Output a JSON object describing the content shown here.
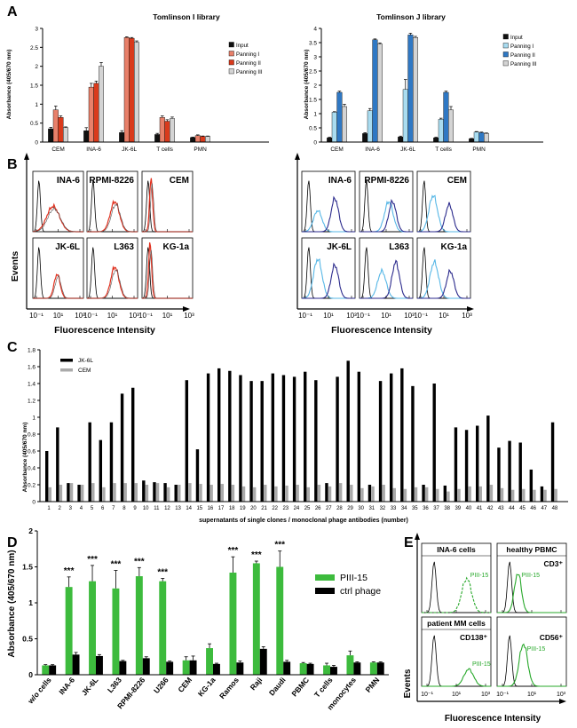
{
  "panels": {
    "A": {
      "letter": "A",
      "left": {
        "title": "Tomlinson I library",
        "ylabel": "Absorbance (405/670 nm)",
        "ticks": [
          "0",
          "0.5",
          "1",
          "1.5",
          "2",
          "2.5",
          "3"
        ],
        "legend": [
          "Input",
          "Panning I",
          "Panning II",
          "Panning III"
        ],
        "colors": [
          "#111111",
          "#e8806a",
          "#d93a1c",
          "#d4d4d4"
        ]
      },
      "right": {
        "title": "Tomlinson J library",
        "ylabel": "Absorbance (405/670 nm)",
        "ticks": [
          "0",
          "0.5",
          "1",
          "1.5",
          "2",
          "2.5",
          "3",
          "3.5",
          "4"
        ],
        "legend": [
          "Input",
          "Panning I",
          "Panning II",
          "Panning III"
        ],
        "colors": [
          "#111111",
          "#a9dcf0",
          "#2f78c4",
          "#d4d4d4"
        ]
      }
    },
    "B": {
      "letter": "B",
      "xlabel": "Fluorescence Intensity",
      "ylabel": "Events",
      "ticks": [
        "10⁻¹",
        "10¹",
        "10³"
      ],
      "left_labels": [
        "INA-6",
        "RPMI-8226",
        "CEM",
        "JK-6L",
        "L363",
        "KG-1a"
      ],
      "right_labels": [
        "INA-6",
        "RPMI-8226",
        "CEM",
        "JK-6L",
        "L363",
        "KG-1a"
      ],
      "left_color": "#e0301e",
      "right_colors": [
        "#57b7e6",
        "#2b2a8c"
      ]
    },
    "C": {
      "letter": "C",
      "ylabel": "Absorbance (405/670 nm)",
      "xlabel": "supernatants of single clones / monoclonal phage antibodies (number)",
      "ticks": [
        "0",
        "0.2",
        "0.4",
        "0.6",
        "0.8",
        "1",
        "1.2",
        "1.4",
        "1.6",
        "1.8"
      ],
      "legend": [
        "JK-6L",
        "CEM"
      ],
      "colors": [
        "#000000",
        "#aaaaaa"
      ]
    },
    "D": {
      "letter": "D",
      "ylabel": "Absorbance (405/670 nm)",
      "ticks": [
        "0",
        "0.5",
        "1",
        "1.5",
        "2"
      ],
      "legend": [
        "PIII-15",
        "ctrl phage"
      ],
      "colors": [
        "#3dbb3d",
        "#000000"
      ],
      "significance": "***"
    },
    "E": {
      "letter": "E",
      "titles": [
        "INA-6 cells",
        "healthy PBMC",
        "patient MM cells",
        ""
      ],
      "markers": [
        "",
        "CD3⁺",
        "CD138⁺",
        "CD56⁺"
      ],
      "curve_label": "PIII-15",
      "xlabel": "Fluorescence Intensity",
      "ylabel": "Events",
      "ticks": [
        "10⁻¹",
        "10¹",
        "10³"
      ],
      "color": "#27a82a"
    }
  },
  "chart_data": [
    {
      "id": "A-left",
      "type": "bar",
      "title": "Tomlinson I library",
      "ylabel": "Absorbance (405/670 nm)",
      "ylim": [
        0,
        3
      ],
      "categories": [
        "CEM",
        "INA-6",
        "JK-6L",
        "T cells",
        "PMN"
      ],
      "series": [
        {
          "name": "Input",
          "values": [
            0.35,
            0.3,
            0.25,
            0.2,
            0.12
          ]
        },
        {
          "name": "Panning I",
          "values": [
            0.85,
            1.45,
            2.76,
            0.65,
            0.17
          ]
        },
        {
          "name": "Panning II",
          "values": [
            0.65,
            1.55,
            2.74,
            0.55,
            0.15
          ]
        },
        {
          "name": "Panning III",
          "values": [
            0.38,
            2.0,
            2.63,
            0.62,
            0.15
          ]
        }
      ]
    },
    {
      "id": "A-right",
      "type": "bar",
      "title": "Tomlinson J library",
      "ylabel": "Absorbance (405/670 nm)",
      "ylim": [
        0,
        4
      ],
      "categories": [
        "CEM",
        "INA-6",
        "JK-6L",
        "T cells",
        "PMN"
      ],
      "series": [
        {
          "name": "Input",
          "values": [
            0.15,
            0.3,
            0.18,
            0.15,
            0.12
          ]
        },
        {
          "name": "Panning I",
          "values": [
            1.05,
            1.1,
            1.85,
            0.8,
            0.35
          ]
        },
        {
          "name": "Panning II",
          "values": [
            1.75,
            3.6,
            3.77,
            1.75,
            0.33
          ]
        },
        {
          "name": "Panning III",
          "values": [
            1.25,
            3.45,
            3.68,
            1.13,
            0.3
          ]
        }
      ]
    },
    {
      "id": "C",
      "type": "bar",
      "ylabel": "Absorbance (405/670 nm)",
      "xlabel": "supernatants of single clones / monoclonal phage antibodies (number)",
      "ylim": [
        0,
        1.8
      ],
      "categories": [
        "1",
        "2",
        "3",
        "4",
        "5",
        "6",
        "7",
        "8",
        "9",
        "10",
        "11",
        "12",
        "13",
        "14",
        "15",
        "16",
        "17",
        "18",
        "19",
        "20",
        "21",
        "22",
        "23",
        "24",
        "25",
        "26",
        "27",
        "28",
        "29",
        "30",
        "31",
        "32",
        "33",
        "34",
        "35",
        "36",
        "37",
        "38",
        "39",
        "40",
        "41",
        "42",
        "43",
        "44",
        "45",
        "46",
        "47",
        "48"
      ],
      "series": [
        {
          "name": "JK-6L",
          "values": [
            0.6,
            0.88,
            0.22,
            0.2,
            0.94,
            0.73,
            0.94,
            1.28,
            1.35,
            0.25,
            0.23,
            0.22,
            0.2,
            1.44,
            0.62,
            1.52,
            1.58,
            1.55,
            1.5,
            1.43,
            1.43,
            1.52,
            1.5,
            1.48,
            1.54,
            1.44,
            0.22,
            1.48,
            1.67,
            1.54,
            0.2,
            1.43,
            1.52,
            1.58,
            1.37,
            0.2,
            1.4,
            0.19,
            0.88,
            0.85,
            0.9,
            1.02,
            0.64,
            0.72,
            0.7,
            0.38,
            0.18,
            0.94
          ]
        },
        {
          "name": "CEM",
          "values": [
            0.17,
            0.2,
            0.22,
            0.2,
            0.22,
            0.17,
            0.22,
            0.22,
            0.22,
            0.2,
            0.22,
            0.17,
            0.2,
            0.22,
            0.21,
            0.2,
            0.21,
            0.2,
            0.18,
            0.17,
            0.2,
            0.18,
            0.19,
            0.2,
            0.17,
            0.2,
            0.18,
            0.22,
            0.2,
            0.16,
            0.18,
            0.2,
            0.16,
            0.15,
            0.17,
            0.17,
            0.15,
            0.12,
            0.15,
            0.18,
            0.18,
            0.2,
            0.16,
            0.14,
            0.15,
            0.14,
            0.14,
            0.15
          ]
        }
      ]
    },
    {
      "id": "D",
      "type": "bar",
      "ylabel": "Absorbance (405/670 nm)",
      "ylim": [
        0,
        2
      ],
      "categories": [
        "w/o cells",
        "INA-6",
        "JK-6L",
        "L363",
        "RPMI-8226",
        "U266",
        "CEM",
        "KG-1a",
        "Ramos",
        "Raji",
        "Daudi",
        "PBMC",
        "T cells",
        "monocytes",
        "PMN"
      ],
      "series": [
        {
          "name": "PIII-15",
          "values": [
            0.13,
            1.22,
            1.3,
            1.2,
            1.37,
            1.3,
            0.2,
            0.37,
            1.42,
            1.55,
            1.5,
            0.16,
            0.13,
            0.27,
            0.17
          ]
        },
        {
          "name": "ctrl phage",
          "values": [
            0.13,
            0.28,
            0.26,
            0.19,
            0.23,
            0.18,
            0.2,
            0.15,
            0.17,
            0.36,
            0.18,
            0.15,
            0.11,
            0.17,
            0.17
          ]
        }
      ],
      "annotations": [
        "***",
        "***",
        "***",
        "***",
        "***",
        "***",
        "***",
        "***"
      ]
    }
  ]
}
